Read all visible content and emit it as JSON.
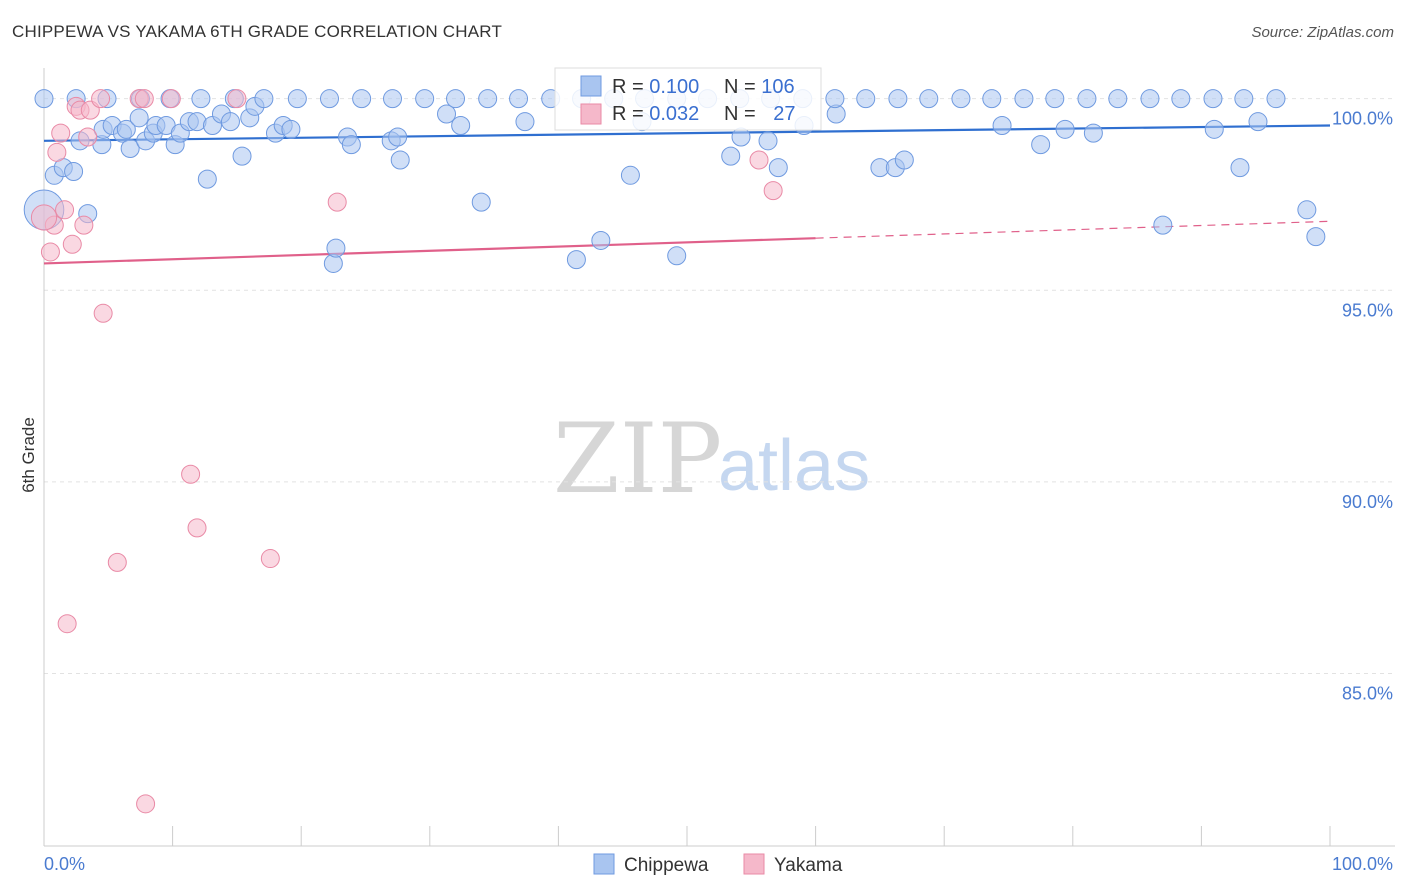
{
  "title": "CHIPPEWA VS YAKAMA 6TH GRADE CORRELATION CHART",
  "source": "Source: ZipAtlas.com",
  "watermark": {
    "zip": "ZIP",
    "atlas": "atlas"
  },
  "colors": {
    "chippewa_fill": "#a9c5f0",
    "chippewa_stroke": "#6f9ae0",
    "chippewa_line": "#2f6fd0",
    "yakama_fill": "#f5b8ca",
    "yakama_stroke": "#e98aa6",
    "yakama_line": "#e0608a",
    "axis_label": "#4a7bd0",
    "grid": "#e2e2e2"
  },
  "legend_box": {
    "rows": [
      {
        "r_label": "R = ",
        "r_value": "0.100",
        "n_label": "N = ",
        "n_value": "106"
      },
      {
        "r_label": "R = ",
        "r_value": "0.032",
        "n_label": "N = ",
        "n_value": "27"
      }
    ]
  },
  "bottom_legend": [
    "Chippewa",
    "Yakama"
  ],
  "chart_data": {
    "type": "scatter",
    "title": "CHIPPEWA VS YAKAMA 6TH GRADE CORRELATION CHART",
    "xlabel": "",
    "ylabel": "6th Grade",
    "xlim": [
      0,
      100
    ],
    "ylim": [
      80.5,
      100.8
    ],
    "x_tick_labels": [
      "0.0%",
      "100.0%"
    ],
    "y_ticks": [
      100,
      95,
      90,
      85
    ],
    "y_tick_labels": [
      "100.0%",
      "95.0%",
      "90.0%",
      "85.0%"
    ],
    "grid": true,
    "legend": "top-center",
    "series": [
      {
        "name": "Chippewa",
        "r": 0.1,
        "n": 106,
        "trend": {
          "x": [
            0,
            100
          ],
          "y": [
            98.9,
            99.3
          ],
          "solid_until": 100
        },
        "points": [
          [
            0.0,
            97.1,
            2.2
          ],
          [
            0.8,
            98.0,
            1
          ],
          [
            1.5,
            98.2,
            1
          ],
          [
            2.3,
            98.1,
            1
          ],
          [
            2.8,
            98.9,
            1
          ],
          [
            3.4,
            97.0,
            1
          ],
          [
            4.5,
            98.8,
            1
          ],
          [
            4.6,
            99.2,
            1
          ],
          [
            5.3,
            99.3,
            1
          ],
          [
            6.1,
            99.1,
            1
          ],
          [
            6.4,
            99.2,
            1
          ],
          [
            6.7,
            98.7,
            1
          ],
          [
            7.4,
            99.5,
            1
          ],
          [
            7.9,
            98.9,
            1
          ],
          [
            8.5,
            99.1,
            1
          ],
          [
            8.7,
            99.3,
            1
          ],
          [
            9.5,
            99.3,
            1
          ],
          [
            10.2,
            98.8,
            1
          ],
          [
            10.6,
            99.1,
            1
          ],
          [
            11.3,
            99.4,
            1
          ],
          [
            11.9,
            99.4,
            1
          ],
          [
            12.7,
            97.9,
            1
          ],
          [
            13.1,
            99.3,
            1
          ],
          [
            13.8,
            99.6,
            1
          ],
          [
            14.5,
            99.4,
            1
          ],
          [
            15.4,
            98.5,
            1
          ],
          [
            16.0,
            99.5,
            1
          ],
          [
            16.4,
            99.8,
            1
          ],
          [
            18.0,
            99.1,
            1
          ],
          [
            18.6,
            99.3,
            1
          ],
          [
            19.2,
            99.2,
            1
          ],
          [
            22.5,
            95.7,
            1
          ],
          [
            22.7,
            96.1,
            1
          ],
          [
            23.6,
            99.0,
            1
          ],
          [
            23.9,
            98.8,
            1
          ],
          [
            27.0,
            98.9,
            1
          ],
          [
            27.5,
            99.0,
            1
          ],
          [
            27.7,
            98.4,
            1
          ],
          [
            31.3,
            99.6,
            1
          ],
          [
            32.4,
            99.3,
            1
          ],
          [
            34.0,
            97.3,
            1
          ],
          [
            37.4,
            99.4,
            1
          ],
          [
            41.4,
            95.8,
            1
          ],
          [
            43.3,
            96.3,
            1
          ],
          [
            45.6,
            98.0,
            1
          ],
          [
            46.5,
            99.4,
            1
          ],
          [
            49.2,
            95.9,
            1
          ],
          [
            53.4,
            98.5,
            1
          ],
          [
            54.2,
            99.0,
            1
          ],
          [
            56.3,
            98.9,
            1
          ],
          [
            57.1,
            98.2,
            1
          ],
          [
            59.1,
            99.3,
            1
          ],
          [
            61.6,
            99.6,
            1
          ],
          [
            65.0,
            98.2,
            1
          ],
          [
            66.2,
            98.2,
            1
          ],
          [
            66.9,
            98.4,
            1
          ],
          [
            74.5,
            99.3,
            1
          ],
          [
            77.5,
            98.8,
            1
          ],
          [
            79.4,
            99.2,
            1
          ],
          [
            81.6,
            99.1,
            1
          ],
          [
            87.0,
            96.7,
            1
          ],
          [
            91.0,
            99.2,
            1
          ],
          [
            93.0,
            98.2,
            1
          ],
          [
            94.4,
            99.4,
            1
          ],
          [
            98.2,
            97.1,
            1
          ],
          [
            98.9,
            96.4,
            1
          ],
          [
            0.0,
            100.0,
            1
          ],
          [
            2.5,
            100.0,
            1
          ],
          [
            4.9,
            100.0,
            1
          ],
          [
            7.5,
            100.0,
            1
          ],
          [
            9.8,
            100.0,
            1
          ],
          [
            12.2,
            100.0,
            1
          ],
          [
            14.8,
            100.0,
            1
          ],
          [
            17.1,
            100.0,
            1
          ],
          [
            19.7,
            100.0,
            1
          ],
          [
            22.2,
            100.0,
            1
          ],
          [
            24.7,
            100.0,
            1
          ],
          [
            27.1,
            100.0,
            1
          ],
          [
            29.6,
            100.0,
            1
          ],
          [
            32.0,
            100.0,
            1
          ],
          [
            34.5,
            100.0,
            1
          ],
          [
            36.9,
            100.0,
            1
          ],
          [
            39.4,
            100.0,
            1
          ],
          [
            41.8,
            100.0,
            1
          ],
          [
            44.3,
            100.0,
            1
          ],
          [
            46.7,
            100.0,
            1
          ],
          [
            49.2,
            100.0,
            1
          ],
          [
            51.6,
            100.0,
            1
          ],
          [
            54.1,
            100.0,
            1
          ],
          [
            56.5,
            100.0,
            1
          ],
          [
            59.0,
            100.0,
            1
          ],
          [
            61.5,
            100.0,
            1
          ],
          [
            63.9,
            100.0,
            1
          ],
          [
            66.4,
            100.0,
            1
          ],
          [
            68.8,
            100.0,
            1
          ],
          [
            71.3,
            100.0,
            1
          ],
          [
            73.7,
            100.0,
            1
          ],
          [
            76.2,
            100.0,
            1
          ],
          [
            78.6,
            100.0,
            1
          ],
          [
            81.1,
            100.0,
            1
          ],
          [
            83.5,
            100.0,
            1
          ],
          [
            86.0,
            100.0,
            1
          ],
          [
            88.4,
            100.0,
            1
          ],
          [
            90.9,
            100.0,
            1
          ],
          [
            93.3,
            100.0,
            1
          ],
          [
            95.8,
            100.0,
            1
          ]
        ]
      },
      {
        "name": "Yakama",
        "r": 0.032,
        "n": 27,
        "trend": {
          "x": [
            0,
            100
          ],
          "y": [
            95.7,
            96.8
          ],
          "solid_until": 60
        },
        "points": [
          [
            0.5,
            96.0,
            1
          ],
          [
            0.8,
            96.7,
            1
          ],
          [
            1.0,
            98.6,
            1
          ],
          [
            1.3,
            99.1,
            1
          ],
          [
            1.6,
            97.1,
            1
          ],
          [
            1.8,
            86.3,
            1
          ],
          [
            2.2,
            96.2,
            1
          ],
          [
            2.5,
            99.8,
            1
          ],
          [
            2.8,
            99.7,
            1
          ],
          [
            3.1,
            96.7,
            1
          ],
          [
            3.4,
            99.0,
            1
          ],
          [
            3.6,
            99.7,
            1
          ],
          [
            4.4,
            100.0,
            1
          ],
          [
            4.6,
            94.4,
            1
          ],
          [
            5.7,
            87.9,
            1
          ],
          [
            7.4,
            100.0,
            1
          ],
          [
            7.8,
            100.0,
            1
          ],
          [
            7.9,
            81.6,
            1
          ],
          [
            11.4,
            90.2,
            1
          ],
          [
            11.9,
            88.8,
            1
          ],
          [
            15.0,
            100.0,
            1
          ],
          [
            17.6,
            88.0,
            1
          ],
          [
            22.8,
            97.3,
            1
          ],
          [
            55.6,
            98.4,
            1
          ],
          [
            56.7,
            97.6,
            1
          ],
          [
            0.0,
            96.9,
            1.4
          ],
          [
            9.9,
            100.0,
            1
          ]
        ]
      }
    ]
  }
}
